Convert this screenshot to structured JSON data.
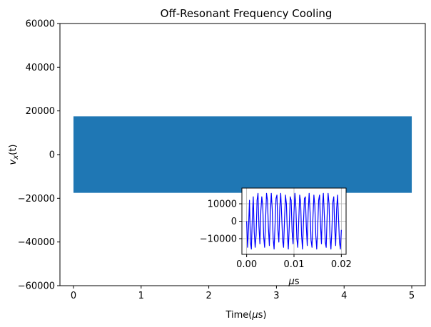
{
  "chart_data": [
    {
      "type": "area",
      "title": "Off-Resonant Frequency Cooling",
      "xlabel": "Time(μs)",
      "ylabel": "v_x(t)",
      "xlim": [
        -0.2,
        5.2
      ],
      "ylim": [
        -60000,
        60000
      ],
      "xticks": [
        0,
        1,
        2,
        3,
        4,
        5
      ],
      "xtick_labels": [
        "0",
        "1",
        "2",
        "3",
        "4",
        "5"
      ],
      "yticks": [
        -60000,
        -40000,
        -20000,
        0,
        20000,
        40000,
        60000
      ],
      "ytick_labels": [
        "−60000",
        "−40000",
        "−20000",
        "0",
        "20000",
        "40000",
        "60000"
      ],
      "grid": false,
      "series": [
        {
          "color": "#1f77b4",
          "x_range": [
            0,
            5
          ],
          "y_envelope": [
            -17500,
            17500
          ]
        }
      ]
    },
    {
      "type": "line",
      "title": "",
      "xlabel": "μs",
      "ylabel": "",
      "xlim": [
        -0.001,
        0.021
      ],
      "ylim": [
        -19000,
        19000
      ],
      "xticks": [
        0.0,
        0.01,
        0.02
      ],
      "xtick_labels": [
        "0.00",
        "0.01",
        "0.02"
      ],
      "yticks": [
        -10000,
        0,
        10000
      ],
      "ytick_labels": [
        "−10000",
        "0",
        "10000"
      ],
      "grid": true,
      "series": [
        {
          "color": "#0000ff",
          "x": [
            0.0,
            0.0002,
            0.0004,
            0.0006,
            0.0008,
            0.001,
            0.0012,
            0.0014,
            0.0016,
            0.0018,
            0.002,
            0.0022,
            0.0024,
            0.0026,
            0.0028,
            0.003,
            0.0032,
            0.0034,
            0.0036,
            0.0038,
            0.004,
            0.0042,
            0.0044,
            0.0046,
            0.0048,
            0.005,
            0.0052,
            0.0054,
            0.0056,
            0.0058,
            0.006,
            0.0062,
            0.0064,
            0.0066,
            0.0068,
            0.007,
            0.0072,
            0.0074,
            0.0076,
            0.0078,
            0.008,
            0.0082,
            0.0084,
            0.0086,
            0.0088,
            0.009,
            0.0092,
            0.0094,
            0.0096,
            0.0098,
            0.01,
            0.0102,
            0.0104,
            0.0106,
            0.0108,
            0.011,
            0.0112,
            0.0114,
            0.0116,
            0.0118,
            0.012,
            0.0122,
            0.0124,
            0.0126,
            0.0128,
            0.013,
            0.0132,
            0.0134,
            0.0136,
            0.0138,
            0.014,
            0.0142,
            0.0144,
            0.0146,
            0.0148,
            0.015,
            0.0152,
            0.0154,
            0.0156,
            0.0158,
            0.016,
            0.0162,
            0.0164,
            0.0166,
            0.0168,
            0.017,
            0.0172,
            0.0174,
            0.0176,
            0.0178,
            0.018,
            0.0182,
            0.0184,
            0.0186,
            0.0188,
            0.019,
            0.0192,
            0.0194,
            0.0196,
            0.0198,
            0.02
          ],
          "y": [
            0,
            -15000,
            -4000,
            12000,
            -12000,
            -16000,
            2000,
            14000,
            -6000,
            -15000,
            -8000,
            12000,
            16000,
            -3000,
            -13000,
            6000,
            14000,
            9000,
            -9000,
            -15000,
            1000,
            16000,
            12000,
            -4000,
            -14000,
            4000,
            16000,
            7000,
            -10000,
            -16000,
            -2000,
            13000,
            15000,
            -5000,
            -12000,
            8000,
            16000,
            3000,
            -11000,
            -15000,
            1000,
            15000,
            10000,
            -7000,
            -16000,
            -3000,
            14000,
            12000,
            -6000,
            -13000,
            5000,
            16000,
            8000,
            -10000,
            -15000,
            0,
            15000,
            11000,
            -8000,
            -16000,
            -1000,
            13000,
            14000,
            -3000,
            -14000,
            6000,
            16000,
            5000,
            -11000,
            -15000,
            2000,
            15000,
            9000,
            -8000,
            -16000,
            -4000,
            12000,
            15000,
            -2000,
            -13000,
            8000,
            16000,
            4000,
            -12000,
            -15000,
            3000,
            16000,
            10000,
            -9000,
            -16000,
            -5000,
            11000,
            14000,
            -4000,
            -14000,
            7000,
            15000,
            2000,
            -12000,
            -16000,
            -5000
          ]
        }
      ]
    }
  ]
}
